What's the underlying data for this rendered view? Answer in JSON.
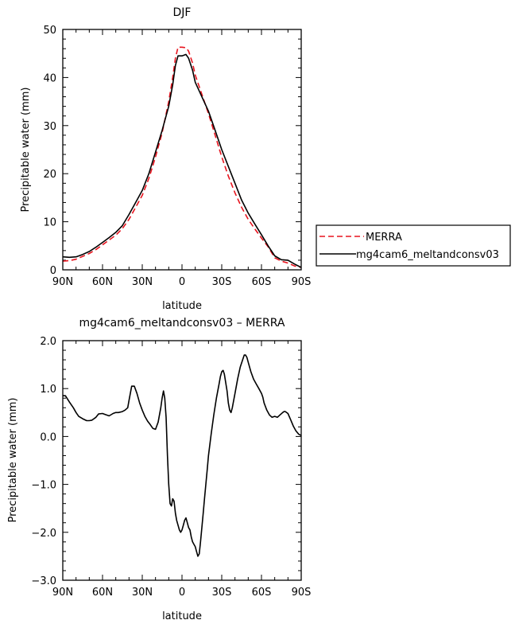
{
  "chart_data": [
    {
      "type": "line",
      "title": "DJF",
      "xlabel": "latitude",
      "ylabel": "Precipitable water (mm)",
      "xlim": [
        90,
        -90
      ],
      "ylim": [
        0,
        50
      ],
      "xticks": [
        90,
        60,
        30,
        0,
        -30,
        -60,
        -90
      ],
      "xtick_labels": [
        "90N",
        "60N",
        "30N",
        "0",
        "30S",
        "60S",
        "90S"
      ],
      "yticks": [
        0,
        10,
        20,
        30,
        40,
        50
      ],
      "ytick_labels": [
        "0",
        "10",
        "20",
        "30",
        "40",
        "50"
      ],
      "grid": false,
      "legend": "right-outside",
      "series": [
        {
          "name": "MERRA",
          "color": "#e8141e",
          "dash": "dashed",
          "x": [
            90,
            85,
            80,
            75,
            70,
            65,
            60,
            55,
            50,
            45,
            40,
            35,
            30,
            25,
            20,
            15,
            10,
            7,
            5,
            3,
            0,
            -3,
            -5,
            -8,
            -10,
            -15,
            -20,
            -25,
            -30,
            -35,
            -40,
            -45,
            -50,
            -55,
            -60,
            -65,
            -70,
            -75,
            -80,
            -85,
            -90
          ],
          "y": [
            1.8,
            1.9,
            2.2,
            2.8,
            3.4,
            4.2,
            5.2,
            6.2,
            7.2,
            8.6,
            10.5,
            13.0,
            15.5,
            19.0,
            23.5,
            28.5,
            35.0,
            40.0,
            44.0,
            46.3,
            46.3,
            46.2,
            45.5,
            43.0,
            40.5,
            36.5,
            32.5,
            28.0,
            23.5,
            19.5,
            16.0,
            13.0,
            10.5,
            8.5,
            6.6,
            4.8,
            2.5,
            1.8,
            1.4,
            0.8,
            0.5
          ]
        },
        {
          "name": "mg4cam6_meltandconsv03",
          "color": "#000000",
          "dash": "solid",
          "x": [
            90,
            85,
            80,
            75,
            70,
            65,
            60,
            55,
            50,
            45,
            40,
            35,
            30,
            25,
            20,
            15,
            10,
            7,
            5,
            3,
            0,
            -3,
            -5,
            -8,
            -10,
            -15,
            -20,
            -25,
            -30,
            -35,
            -40,
            -45,
            -50,
            -55,
            -60,
            -65,
            -70,
            -75,
            -80,
            -85,
            -90
          ],
          "y": [
            2.7,
            2.6,
            2.7,
            3.2,
            3.8,
            4.7,
            5.7,
            6.7,
            7.8,
            9.2,
            11.5,
            14.0,
            16.5,
            20.0,
            24.5,
            29.0,
            34.0,
            38.5,
            42.5,
            44.5,
            44.5,
            44.8,
            44.0,
            41.5,
            39.0,
            36.0,
            33.0,
            29.0,
            25.0,
            21.5,
            18.0,
            14.5,
            11.8,
            9.5,
            7.3,
            5.0,
            2.9,
            2.1,
            2.0,
            1.2,
            0.5
          ]
        }
      ]
    },
    {
      "type": "line",
      "title": "mg4cam6_meltandconsv03 – MERRA",
      "xlabel": "latitude",
      "ylabel": "Precipitable water (mm)",
      "xlim": [
        90,
        -90
      ],
      "ylim": [
        -3.0,
        2.0
      ],
      "xticks": [
        90,
        60,
        30,
        0,
        -30,
        -60,
        -90
      ],
      "xtick_labels": [
        "90N",
        "60N",
        "30N",
        "0",
        "30S",
        "60S",
        "90S"
      ],
      "yticks": [
        -3.0,
        -2.0,
        -1.0,
        0.0,
        1.0,
        2.0
      ],
      "ytick_labels": [
        "−3.0",
        "−2.0",
        "−1.0",
        "0.0",
        "1.0",
        "2.0"
      ],
      "grid": false,
      "series": [
        {
          "color": "#000000",
          "dash": "solid",
          "x": [
            90,
            88,
            85,
            82,
            80,
            78,
            75,
            72,
            70,
            68,
            65,
            63,
            60,
            58,
            55,
            52,
            50,
            48,
            45,
            43,
            41,
            40,
            39,
            38,
            36,
            34,
            32,
            30,
            28,
            26,
            24,
            22,
            20,
            18,
            16,
            15,
            14,
            13,
            12,
            11,
            10,
            9,
            8,
            7,
            6,
            5,
            4,
            3,
            2,
            1,
            0,
            -1,
            -2,
            -3,
            -4,
            -5,
            -6,
            -7,
            -8,
            -9,
            -10,
            -11,
            -12,
            -13,
            -14,
            -15,
            -16,
            -17,
            -18,
            -19,
            -20,
            -22,
            -24,
            -26,
            -28,
            -29,
            -30,
            -31,
            -32,
            -34,
            -35,
            -36,
            -37,
            -38,
            -40,
            -42,
            -44,
            -46,
            -47,
            -48,
            -49,
            -50,
            -52,
            -54,
            -56,
            -58,
            -60,
            -61,
            -62,
            -64,
            -66,
            -68,
            -70,
            -72,
            -74,
            -76,
            -77,
            -78,
            -80,
            -82,
            -84,
            -86,
            -88,
            -90
          ],
          "y": [
            0.85,
            0.85,
            0.72,
            0.6,
            0.5,
            0.42,
            0.37,
            0.33,
            0.33,
            0.34,
            0.4,
            0.47,
            0.48,
            0.46,
            0.43,
            0.48,
            0.5,
            0.5,
            0.52,
            0.55,
            0.6,
            0.75,
            0.9,
            1.05,
            1.05,
            0.9,
            0.7,
            0.55,
            0.42,
            0.32,
            0.25,
            0.17,
            0.15,
            0.3,
            0.6,
            0.8,
            0.95,
            0.8,
            0.4,
            -0.4,
            -1.0,
            -1.4,
            -1.45,
            -1.3,
            -1.35,
            -1.6,
            -1.75,
            -1.85,
            -1.95,
            -2.0,
            -1.95,
            -1.85,
            -1.75,
            -1.7,
            -1.8,
            -1.9,
            -1.95,
            -2.1,
            -2.2,
            -2.25,
            -2.3,
            -2.4,
            -2.5,
            -2.45,
            -2.2,
            -1.9,
            -1.6,
            -1.3,
            -1.0,
            -0.7,
            -0.4,
            0.05,
            0.45,
            0.8,
            1.1,
            1.25,
            1.35,
            1.38,
            1.3,
            0.95,
            0.7,
            0.55,
            0.5,
            0.6,
            0.9,
            1.2,
            1.45,
            1.62,
            1.7,
            1.7,
            1.65,
            1.55,
            1.35,
            1.2,
            1.1,
            1.0,
            0.9,
            0.82,
            0.7,
            0.55,
            0.45,
            0.4,
            0.42,
            0.4,
            0.45,
            0.5,
            0.52,
            0.52,
            0.48,
            0.35,
            0.22,
            0.12,
            0.05,
            0.02
          ]
        }
      ]
    }
  ]
}
